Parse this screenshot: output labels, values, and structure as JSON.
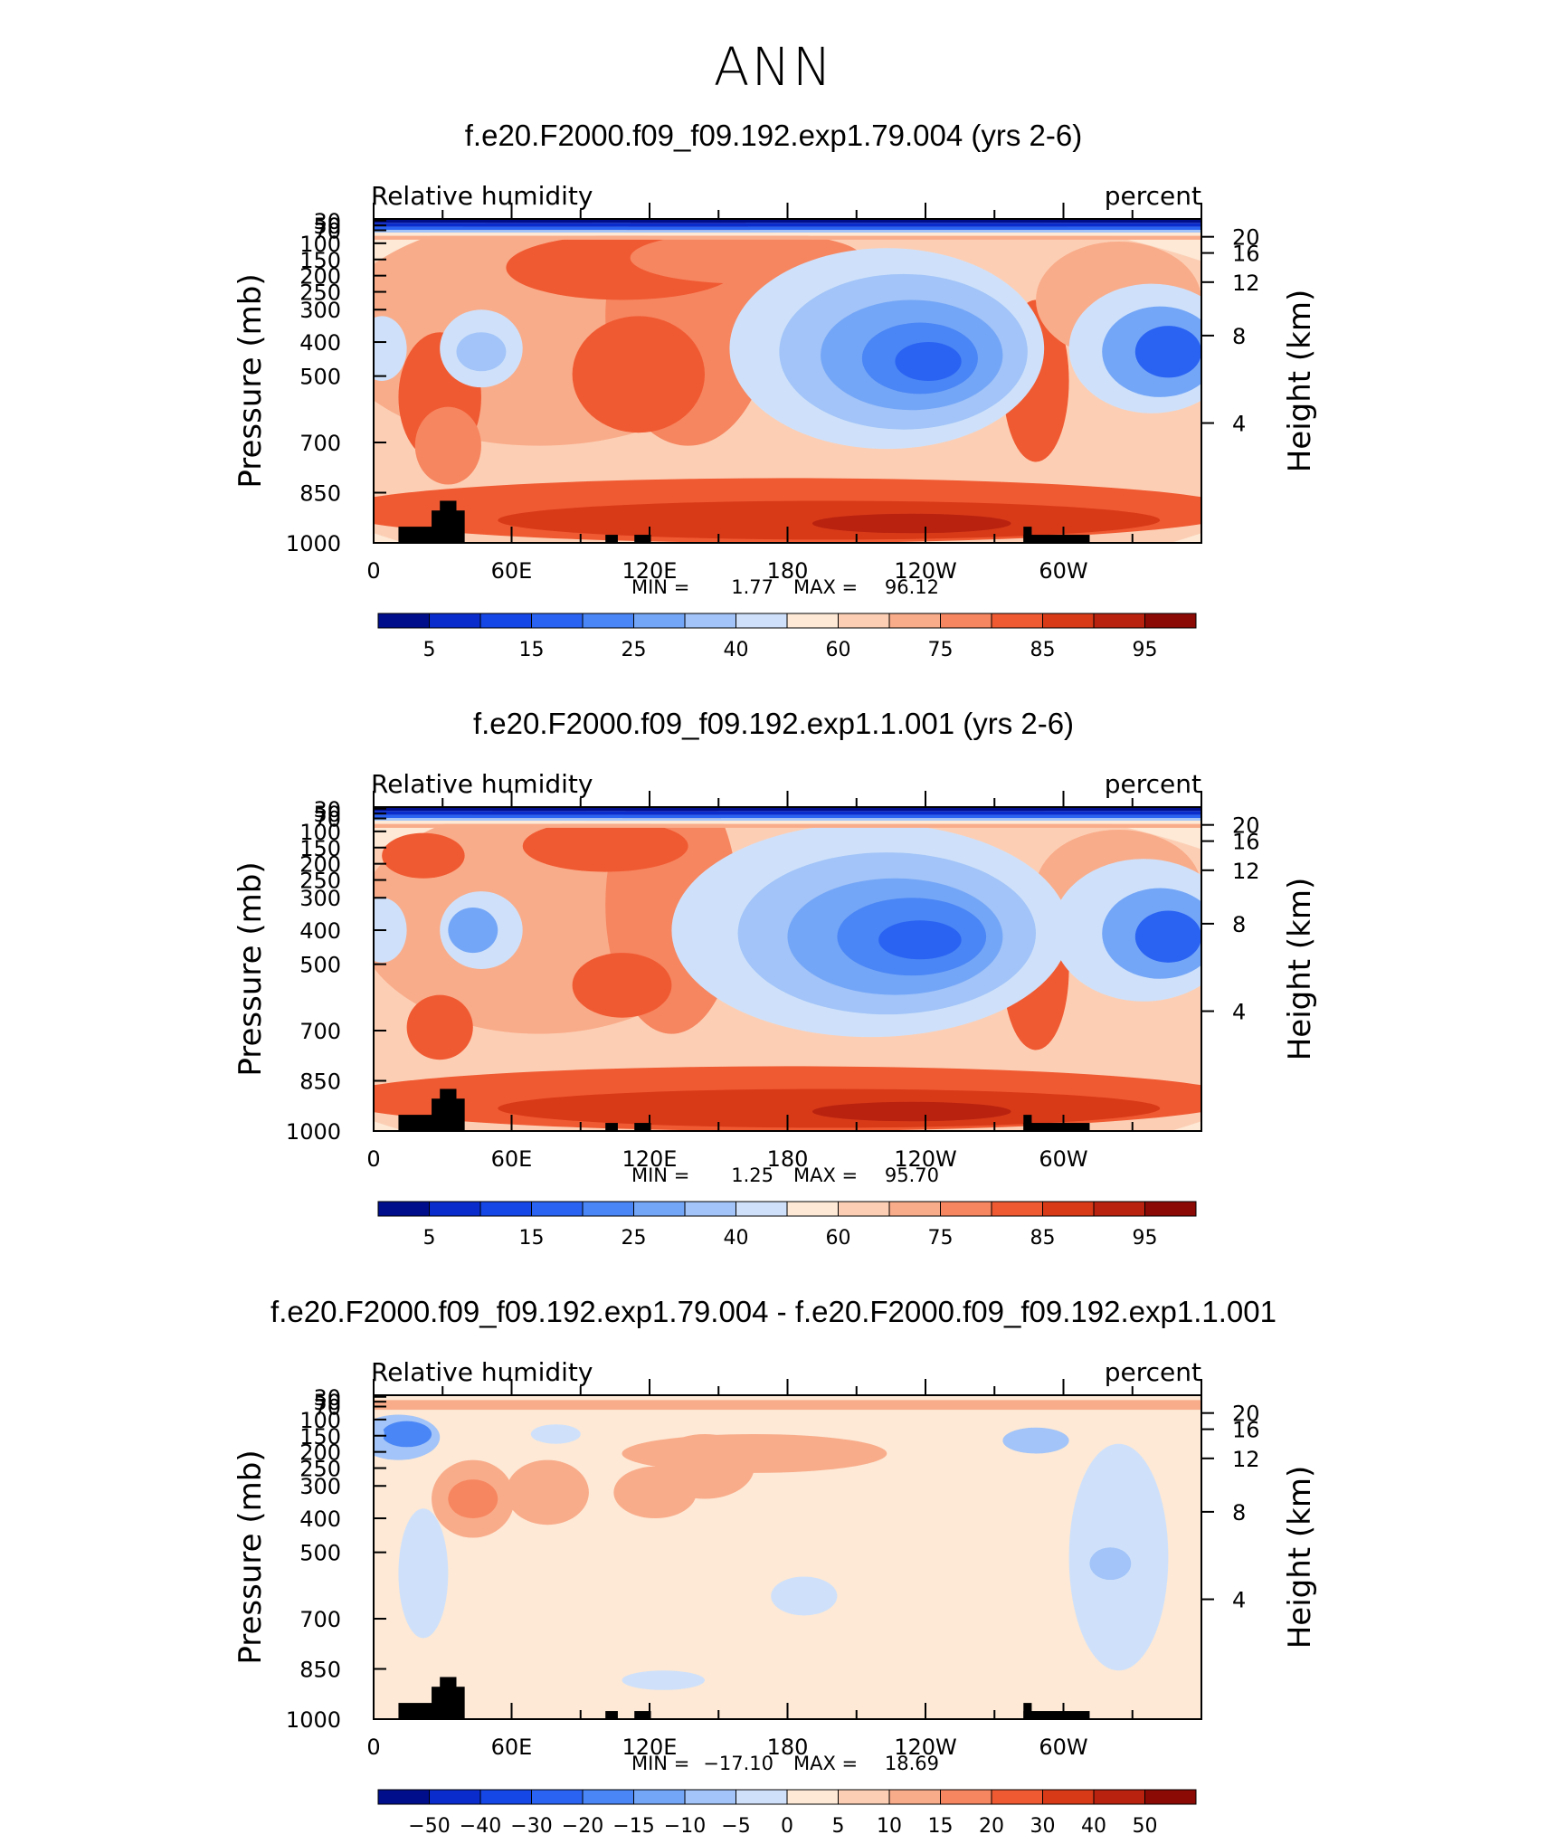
{
  "title": "ANN",
  "chart_data": [
    {
      "type": "contour",
      "title": "f.e20.F2000.f09_f09.192.exp1.79.004 (yrs 2-6)",
      "variable": "Relative humidity",
      "units": "percent",
      "ylabel": "Pressure (mb)",
      "y2label": "Height (km)",
      "x_ticks": [
        "0",
        "60E",
        "120E",
        "180",
        "120W",
        "60W"
      ],
      "y_ticks": [
        "30",
        "50",
        "70",
        "100",
        "150",
        "200",
        "250",
        "300",
        "400",
        "500",
        "700",
        "850",
        "1000"
      ],
      "y2_ticks": [
        "20",
        "16",
        "12",
        "8",
        "4"
      ],
      "stats_min_label": "MIN =",
      "stats_min": "1.77",
      "stats_max_label": "MAX =",
      "stats_max": "96.12",
      "colorbar_labels": [
        "5",
        "15",
        "25",
        "40",
        "60",
        "75",
        "85",
        "95"
      ]
    },
    {
      "type": "contour",
      "title": "f.e20.F2000.f09_f09.192.exp1.1.001 (yrs 2-6)",
      "variable": "Relative humidity",
      "units": "percent",
      "ylabel": "Pressure (mb)",
      "y2label": "Height (km)",
      "x_ticks": [
        "0",
        "60E",
        "120E",
        "180",
        "120W",
        "60W"
      ],
      "y_ticks": [
        "30",
        "50",
        "70",
        "100",
        "150",
        "200",
        "250",
        "300",
        "400",
        "500",
        "700",
        "850",
        "1000"
      ],
      "y2_ticks": [
        "20",
        "16",
        "12",
        "8",
        "4"
      ],
      "stats_min_label": "MIN =",
      "stats_min": "1.25",
      "stats_max_label": "MAX =",
      "stats_max": "95.70",
      "colorbar_labels": [
        "5",
        "15",
        "25",
        "40",
        "60",
        "75",
        "85",
        "95"
      ]
    },
    {
      "type": "contour",
      "title": "f.e20.F2000.f09_f09.192.exp1.79.004 - f.e20.F2000.f09_f09.192.exp1.1.001",
      "variable": "Relative humidity",
      "units": "percent",
      "ylabel": "Pressure (mb)",
      "y2label": "Height (km)",
      "x_ticks": [
        "0",
        "60E",
        "120E",
        "180",
        "120W",
        "60W"
      ],
      "y_ticks": [
        "30",
        "50",
        "70",
        "100",
        "150",
        "200",
        "250",
        "300",
        "400",
        "500",
        "700",
        "850",
        "1000"
      ],
      "y2_ticks": [
        "20",
        "16",
        "12",
        "8",
        "4"
      ],
      "stats_min_label": "MIN =",
      "stats_min": "−17.10",
      "stats_max_label": "MAX =",
      "stats_max": "18.69",
      "colorbar_labels": [
        "−50",
        "−40",
        "−30",
        "−20",
        "−15",
        "−10",
        "−5",
        "0",
        "5",
        "10",
        "15",
        "20",
        "30",
        "40",
        "50"
      ]
    }
  ],
  "colors": {
    "palette": [
      "#000e8c",
      "#0a2ccc",
      "#1546e6",
      "#2a63f2",
      "#4a86f5",
      "#74a6f7",
      "#a2c4f8",
      "#cfe1fa",
      "#fde9d6",
      "#fccfb5",
      "#f9ac8a",
      "#f68660",
      "#f05a32",
      "#d83a18",
      "#b8220f",
      "#8c0a06"
    ]
  }
}
